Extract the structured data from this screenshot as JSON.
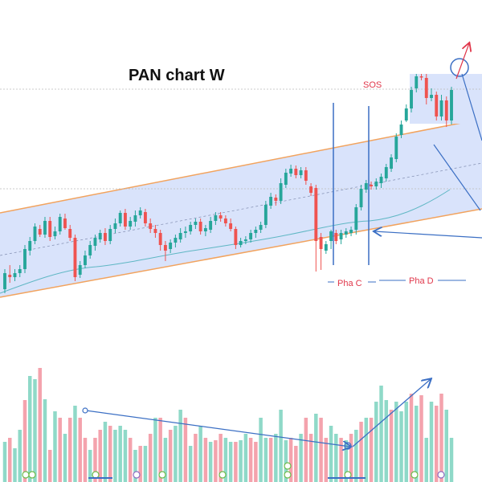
{
  "chart_data": {
    "type": "candlestick",
    "title": "PAN chart W",
    "annotations": {
      "sos": "SOS",
      "phase_c": "Pha C",
      "phase_d": "Pha D"
    },
    "colors": {
      "up": "#26a69a",
      "down": "#ef5350",
      "channel_fill": "#d9e3fb",
      "channel_line": "#f2a35e",
      "arrow": "#3b6fc4",
      "ma": "#5fb7c4",
      "vol_up": "#8fd9c8",
      "vol_down": "#f4a3ad",
      "target": "#e0364a"
    },
    "candles": [
      [
        360,
        340,
        365,
        335
      ],
      [
        342,
        345,
        352,
        330
      ],
      [
        345,
        340,
        350,
        335
      ],
      [
        340,
        335,
        345,
        330
      ],
      [
        335,
        310,
        340,
        305
      ],
      [
        312,
        300,
        318,
        295
      ],
      [
        300,
        282,
        304,
        278
      ],
      [
        285,
        292,
        295,
        280
      ],
      [
        292,
        275,
        296,
        270
      ],
      [
        275,
        295,
        300,
        270
      ],
      [
        294,
        288,
        298,
        282
      ],
      [
        288,
        270,
        292,
        266
      ],
      [
        272,
        284,
        286,
        266
      ],
      [
        285,
        296,
        300,
        280
      ],
      [
        296,
        345,
        350,
        292
      ],
      [
        342,
        330,
        346,
        325
      ],
      [
        330,
        318,
        334,
        312
      ],
      [
        318,
        305,
        322,
        300
      ],
      [
        306,
        296,
        312,
        292
      ],
      [
        298,
        290,
        302,
        286
      ],
      [
        290,
        300,
        305,
        284
      ],
      [
        300,
        285,
        304,
        280
      ],
      [
        285,
        278,
        290,
        272
      ],
      [
        278,
        265,
        282,
        262
      ],
      [
        265,
        282,
        286,
        260
      ],
      [
        282,
        275,
        286,
        270
      ],
      [
        276,
        268,
        282,
        262
      ],
      [
        268,
        262,
        272,
        258
      ],
      [
        264,
        278,
        282,
        260
      ],
      [
        278,
        285,
        290,
        272
      ],
      [
        285,
        290,
        296,
        280
      ],
      [
        290,
        305,
        312,
        286
      ],
      [
        305,
        312,
        325,
        300
      ],
      [
        310,
        302,
        315,
        298
      ],
      [
        302,
        296,
        308,
        292
      ],
      [
        298,
        290,
        302,
        284
      ],
      [
        290,
        288,
        296,
        282
      ],
      [
        288,
        280,
        292,
        276
      ],
      [
        280,
        276,
        285,
        272
      ],
      [
        276,
        288,
        292,
        272
      ],
      [
        288,
        284,
        294,
        280
      ],
      [
        286,
        275,
        290,
        270
      ],
      [
        275,
        268,
        280,
        264
      ],
      [
        268,
        272,
        276,
        264
      ],
      [
        272,
        278,
        282,
        268
      ],
      [
        278,
        285,
        288,
        272
      ],
      [
        285,
        305,
        310,
        282
      ],
      [
        305,
        300,
        308,
        296
      ],
      [
        300,
        298,
        304,
        294
      ],
      [
        298,
        290,
        302,
        286
      ],
      [
        290,
        286,
        296,
        282
      ],
      [
        286,
        280,
        290,
        276
      ],
      [
        280,
        255,
        284,
        250
      ],
      [
        256,
        245,
        260,
        240
      ],
      [
        246,
        250,
        256,
        242
      ],
      [
        250,
        228,
        254,
        222
      ],
      [
        230,
        215,
        234,
        210
      ],
      [
        216,
        210,
        220,
        205
      ],
      [
        210,
        218,
        222,
        206
      ],
      [
        218,
        212,
        222,
        208
      ],
      [
        212,
        225,
        230,
        208
      ],
      [
        232,
        240,
        244,
        228
      ],
      [
        234,
        300,
        338,
        230
      ],
      [
        295,
        310,
        336,
        290
      ],
      [
        312,
        304,
        316,
        300
      ],
      [
        300,
        288,
        310,
        286
      ],
      [
        290,
        300,
        304,
        286
      ],
      [
        298,
        290,
        304,
        286
      ],
      [
        292,
        288,
        296,
        284
      ],
      [
        290,
        286,
        294,
        282
      ],
      [
        286,
        258,
        292,
        254
      ],
      [
        258,
        235,
        262,
        230
      ],
      [
        236,
        228,
        240,
        224
      ],
      [
        230,
        232,
        236,
        226
      ],
      [
        232,
        226,
        236,
        222
      ],
      [
        228,
        220,
        234,
        216
      ],
      [
        222,
        208,
        226,
        204
      ],
      [
        210,
        196,
        214,
        192
      ],
      [
        198,
        170,
        202,
        166
      ],
      [
        168,
        155,
        172,
        150
      ],
      [
        150,
        135,
        152,
        130
      ],
      [
        135,
        112,
        140,
        108
      ],
      [
        110,
        95,
        115,
        92
      ],
      [
        95,
        96,
        100,
        92
      ],
      [
        97,
        122,
        130,
        92
      ],
      [
        122,
        118,
        126,
        110
      ],
      [
        118,
        145,
        150,
        114
      ],
      [
        145,
        125,
        150,
        118
      ],
      [
        125,
        150,
        158,
        120
      ],
      [
        150,
        112,
        155,
        108
      ]
    ],
    "volume": [
      [
        550,
        "u"
      ],
      [
        545,
        "d"
      ],
      [
        558,
        "u"
      ],
      [
        535,
        "u"
      ],
      [
        498,
        "d"
      ],
      [
        468,
        "u"
      ],
      [
        472,
        "u"
      ],
      [
        458,
        "d"
      ],
      [
        497,
        "u"
      ],
      [
        560,
        "d"
      ],
      [
        512,
        "u"
      ],
      [
        520,
        "d"
      ],
      [
        540,
        "u"
      ],
      [
        520,
        "d"
      ],
      [
        505,
        "u"
      ],
      [
        520,
        "d"
      ],
      [
        545,
        "d"
      ],
      [
        560,
        "u"
      ],
      [
        545,
        "d"
      ],
      [
        535,
        "d"
      ],
      [
        525,
        "u"
      ],
      [
        530,
        "d"
      ],
      [
        535,
        "u"
      ],
      [
        530,
        "u"
      ],
      [
        535,
        "u"
      ],
      [
        545,
        "d"
      ],
      [
        560,
        "u"
      ],
      [
        555,
        "d"
      ],
      [
        555,
        "u"
      ],
      [
        540,
        "d"
      ],
      [
        520,
        "u"
      ],
      [
        520,
        "d"
      ],
      [
        545,
        "u"
      ],
      [
        535,
        "d"
      ],
      [
        530,
        "u"
      ],
      [
        510,
        "u"
      ],
      [
        520,
        "d"
      ],
      [
        555,
        "u"
      ],
      [
        540,
        "d"
      ],
      [
        530,
        "u"
      ],
      [
        545,
        "d"
      ],
      [
        550,
        "u"
      ],
      [
        548,
        "d"
      ],
      [
        540,
        "d"
      ],
      [
        545,
        "u"
      ],
      [
        550,
        "u"
      ],
      [
        550,
        "d"
      ],
      [
        548,
        "u"
      ],
      [
        540,
        "u"
      ],
      [
        545,
        "d"
      ],
      [
        550,
        "d"
      ],
      [
        520,
        "u"
      ],
      [
        545,
        "u"
      ],
      [
        545,
        "d"
      ],
      [
        540,
        "u"
      ],
      [
        510,
        "u"
      ],
      [
        548,
        "u"
      ],
      [
        545,
        "d"
      ],
      [
        555,
        "d"
      ],
      [
        540,
        "u"
      ],
      [
        520,
        "d"
      ],
      [
        540,
        "d"
      ],
      [
        515,
        "u"
      ],
      [
        520,
        "d"
      ],
      [
        545,
        "d"
      ],
      [
        530,
        "u"
      ],
      [
        540,
        "u"
      ],
      [
        545,
        "d"
      ],
      [
        548,
        "u"
      ],
      [
        540,
        "d"
      ],
      [
        535,
        "u"
      ],
      [
        525,
        "d"
      ],
      [
        520,
        "u"
      ],
      [
        520,
        "d"
      ],
      [
        500,
        "u"
      ],
      [
        480,
        "u"
      ],
      [
        498,
        "u"
      ],
      [
        510,
        "d"
      ],
      [
        500,
        "u"
      ],
      [
        512,
        "u"
      ],
      [
        500,
        "u"
      ],
      [
        490,
        "d"
      ],
      [
        505,
        "u"
      ],
      [
        492,
        "d"
      ],
      [
        545,
        "u"
      ],
      [
        500,
        "u"
      ],
      [
        505,
        "d"
      ],
      [
        490,
        "d"
      ],
      [
        510,
        "u"
      ],
      [
        545,
        "u"
      ]
    ]
  }
}
